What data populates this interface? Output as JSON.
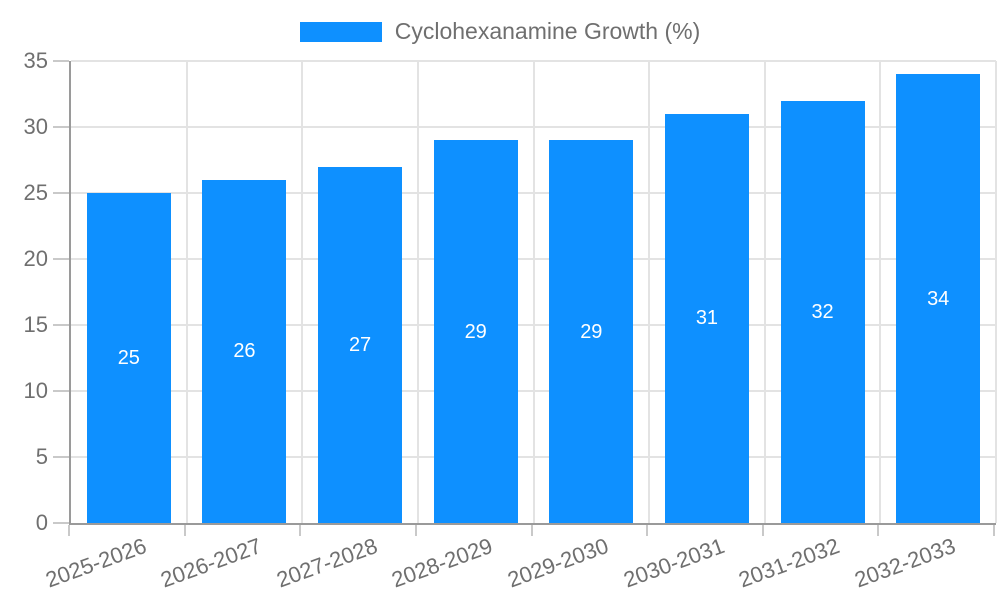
{
  "legend": {
    "series_label": "Cyclohexanamine Growth (%)"
  },
  "chart_data": {
    "type": "bar",
    "title": "",
    "categories": [
      "2025-2026",
      "2026-2027",
      "2027-2028",
      "2028-2029",
      "2029-2030",
      "2030-2031",
      "2031-2032",
      "2032-2033"
    ],
    "series": [
      {
        "name": "Cyclohexanamine Growth (%)",
        "values": [
          25,
          26,
          27,
          29,
          29,
          31,
          32,
          34
        ]
      }
    ],
    "bar_labels": [
      "25",
      "26",
      "27",
      "29",
      "29",
      "31",
      "32",
      "34"
    ],
    "bar_label_position": "inside-middle",
    "xlabel": "",
    "ylabel": "",
    "ylim": [
      0,
      35
    ],
    "yticks": [
      0,
      5,
      10,
      15,
      20,
      25,
      30,
      35
    ],
    "grid": true,
    "legend_position": "top-center",
    "bar_color": "#0E90FF",
    "bar_label_color": "#FFFFFF",
    "axis_text_color": "#6F6F6F",
    "gridline_color": "#E3E3E3",
    "axis_line_color": "#9A9A9A",
    "tick_color": "#C9C9C9"
  }
}
